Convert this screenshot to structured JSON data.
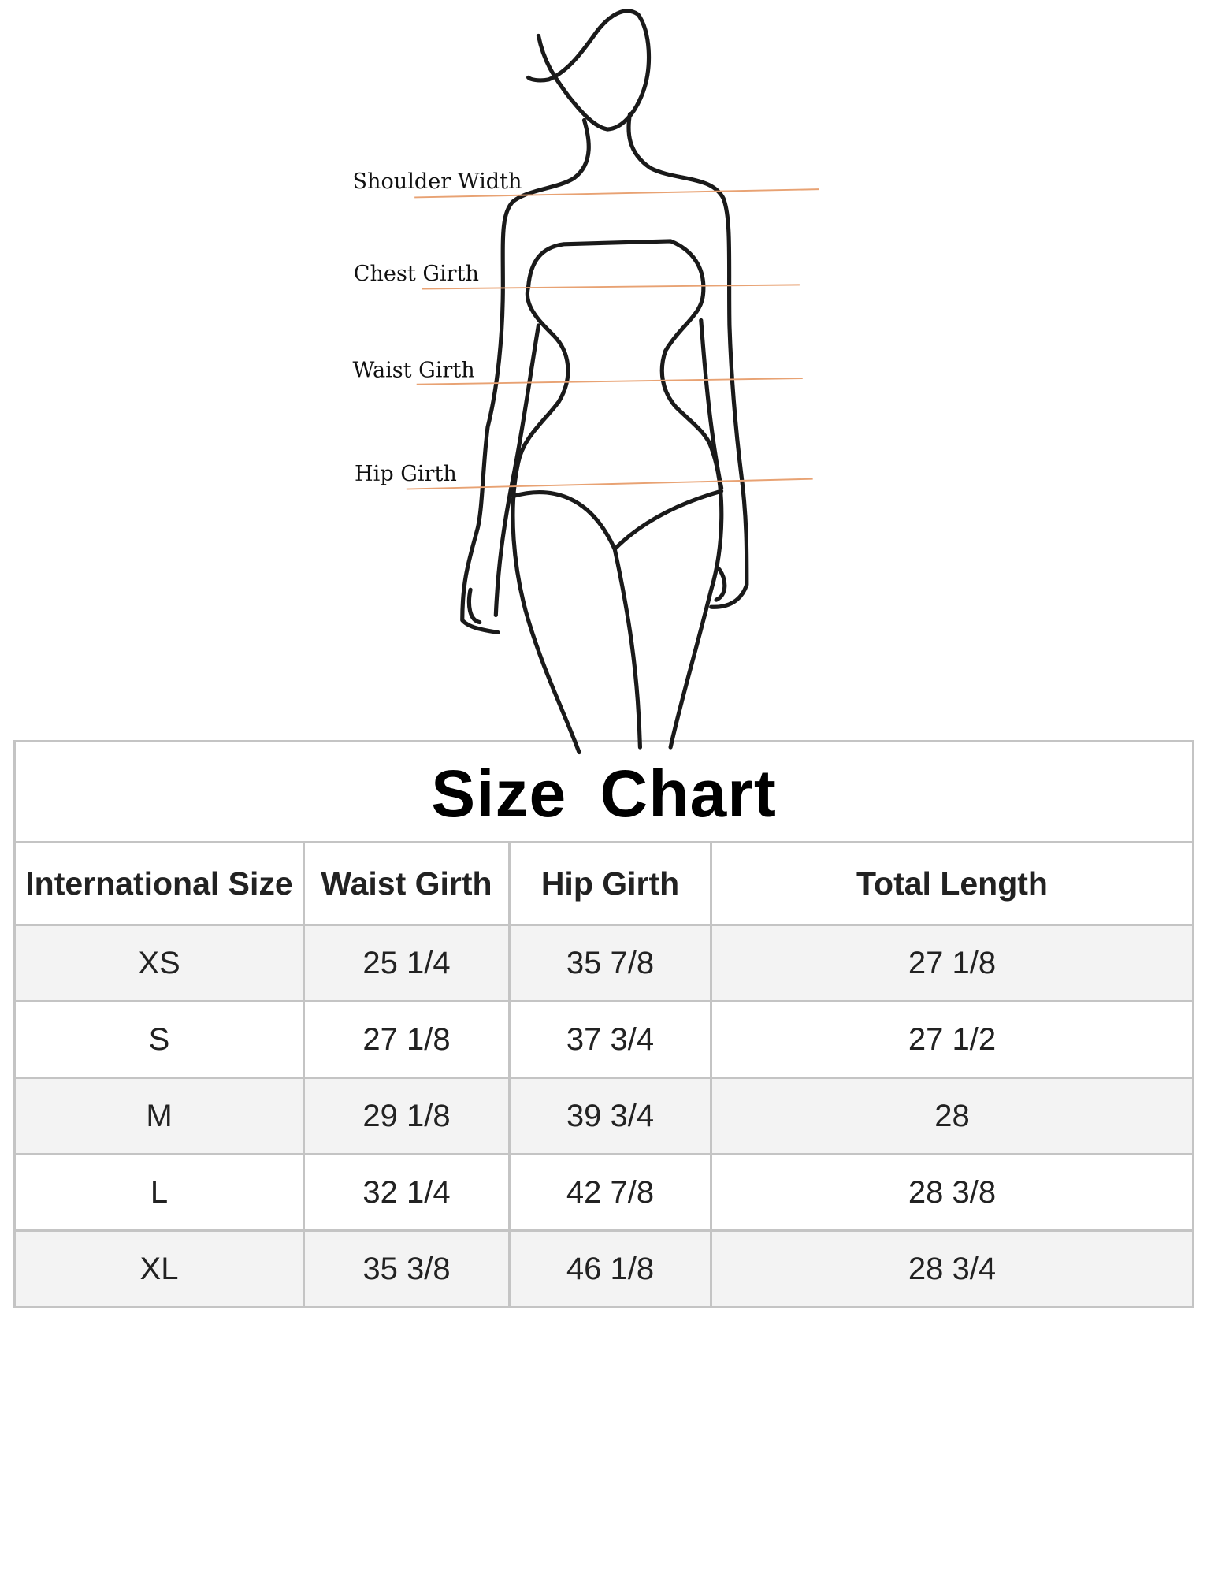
{
  "figure": {
    "labels": [
      "Shoulder Width",
      "Chest Girth",
      "Waist Girth",
      "Hip Girth"
    ],
    "line_color": "#e8a273"
  },
  "size_chart": {
    "title": "Size  Chart",
    "columns": [
      "International Size",
      "Waist Girth",
      "Hip Girth",
      "Total Length"
    ],
    "rows": [
      [
        "XS",
        "25 1/4",
        "35 7/8",
        "27 1/8"
      ],
      [
        "S",
        "27 1/8",
        "37 3/4",
        "27 1/2"
      ],
      [
        "M",
        "29 1/8",
        "39 3/4",
        "28"
      ],
      [
        "L",
        "32 1/4",
        "42 7/8",
        "28 3/8"
      ],
      [
        "XL",
        "35 3/8",
        "46 1/8",
        "28 3/4"
      ]
    ],
    "alt_row_color": "#f3f3f3",
    "border_color": "#c4c4c4"
  }
}
